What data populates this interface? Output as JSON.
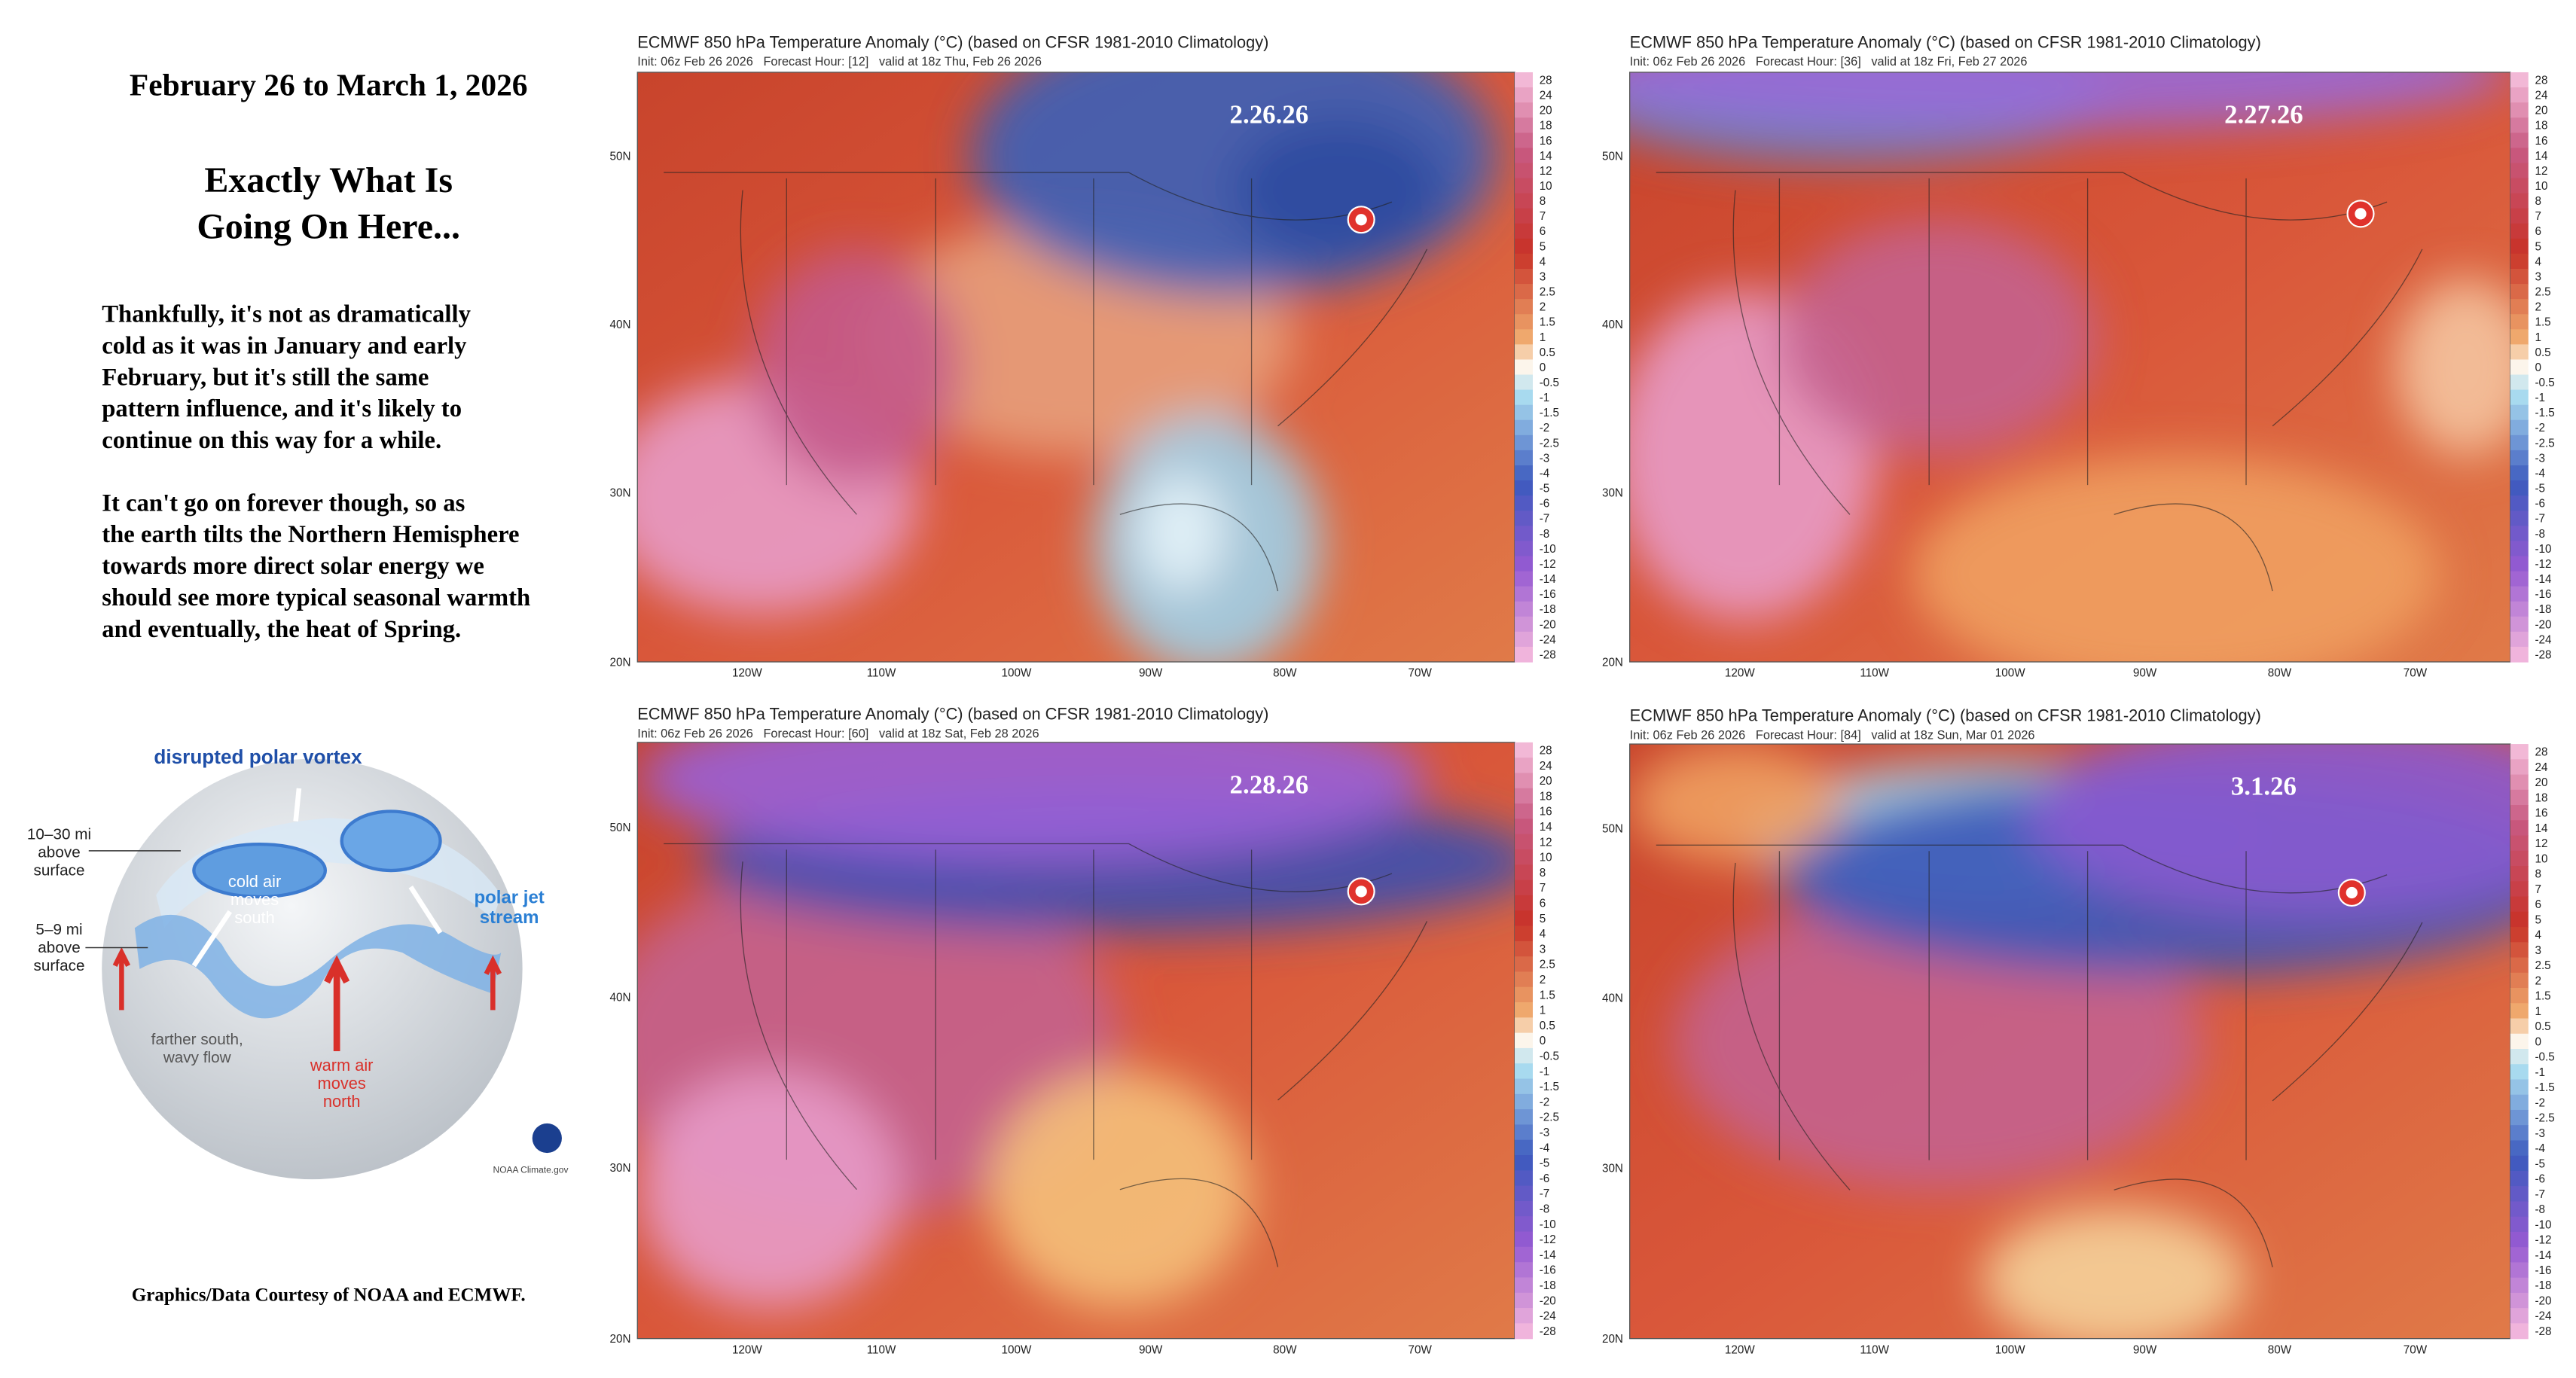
{
  "header": {
    "date_range": "February 26 to March 1, 2026",
    "headline": [
      "Exactly What Is",
      "Going On Here..."
    ]
  },
  "body": {
    "paragraphs": [
      [
        "Thankfully, it's not as dramatically",
        "cold as it was in January and early",
        "February, but it's still the same",
        "pattern influence, and it's likely to",
        "continue on this way for a while."
      ],
      [
        "It can't go on forever though, so as",
        "the earth tilts the Northern Hemisphere",
        "towards more direct solar energy we",
        "should see more typical seasonal warmth",
        "and eventually, the heat of Spring."
      ]
    ]
  },
  "diagram": {
    "title": "disrupted polar vortex",
    "upper_height": [
      "10–30 mi",
      "above",
      "surface"
    ],
    "lower_height": [
      "5–9 mi",
      "above",
      "surface"
    ],
    "cold_air": [
      "cold air",
      "moves",
      "south"
    ],
    "jet_stream": [
      "polar jet",
      "stream"
    ],
    "wavy_flow": [
      "farther south,",
      "wavy flow"
    ],
    "warm_air": [
      "warm air",
      "moves",
      "north"
    ],
    "source": "NOAA Climate.gov"
  },
  "credit": "Graphics/Data Courtesy of NOAA and ECMWF.",
  "map_axes": {
    "latitudes": [
      "50N",
      "40N",
      "30N",
      "20N"
    ],
    "longitudes": [
      "120W",
      "110W",
      "100W",
      "90W",
      "80W",
      "70W"
    ],
    "colorbar_ticks": [
      28,
      24,
      20,
      18,
      16,
      14,
      12,
      10,
      8,
      7,
      6,
      5,
      4,
      3,
      2.5,
      2,
      1.5,
      1,
      0.5,
      0,
      -0.5,
      -1,
      -1.5,
      -2,
      -2.5,
      -3,
      -4,
      -5,
      -6,
      -7,
      -8,
      -10,
      -12,
      -14,
      -16,
      -18,
      -20,
      -24,
      -28
    ]
  },
  "maps": [
    {
      "title": "ECMWF 850 hPa Temperature Anomaly (°C) (based on CFSR 1981-2010 Climatology)",
      "init": "Init: 06z Feb 26 2026   Forecast Hour: [12]   valid at 18z Thu, Feb 26 2026",
      "date_label": "2.26.26"
    },
    {
      "title": "ECMWF 850 hPa Temperature Anomaly (°C) (based on CFSR 1981-2010 Climatology)",
      "init": "Init: 06z Feb 26 2026   Forecast Hour: [36]   valid at 18z Fri, Feb 27 2026",
      "date_label": "2.27.26"
    },
    {
      "title": "ECMWF 850 hPa Temperature Anomaly (°C) (based on CFSR 1981-2010 Climatology)",
      "init": "Init: 06z Feb 26 2026   Forecast Hour: [60]   valid at 18z Sat, Feb 28 2026",
      "date_label": "2.28.26"
    },
    {
      "title": "ECMWF 850 hPa Temperature Anomaly (°C) (based on CFSR 1981-2010 Climatology)",
      "init": "Init: 06z Feb 26 2026   Forecast Hour: [84]   valid at 18z Sun, Mar 01 2026",
      "date_label": "3.1.26"
    }
  ]
}
